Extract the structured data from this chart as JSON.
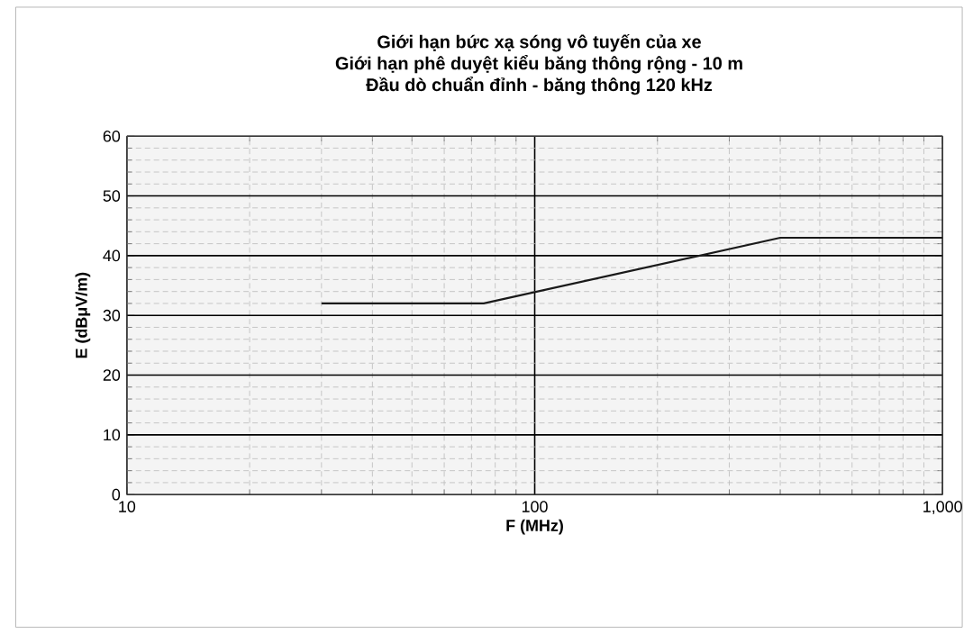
{
  "chart_data": {
    "type": "line",
    "title": "Giới hạn bức xạ sóng vô tuyến của xe\nGiới hạn phê duyệt kiểu băng thông rộng - 10 m\nĐầu dò chuẩn đỉnh - băng thông 120 kHz",
    "xlabel": "F (MHz)",
    "ylabel": "E (dBμV/m)",
    "log": "x",
    "x": [
      30,
      75,
      400,
      1000
    ],
    "series": [
      {
        "color": "#1a1a1a",
        "values": [
          32,
          32,
          43,
          43
        ]
      }
    ],
    "xlim": [
      10,
      1000
    ],
    "ylim": [
      0,
      60
    ],
    "xticks": [
      10,
      100,
      {
        "value": 1000,
        "label": "1,000"
      }
    ],
    "yticks": [
      0,
      10,
      20,
      30,
      40,
      50,
      60
    ],
    "grid": true,
    "marker": "none",
    "line_style": "solid"
  }
}
